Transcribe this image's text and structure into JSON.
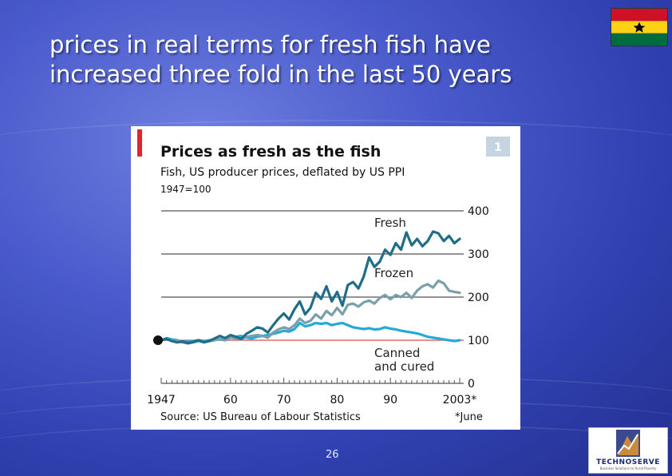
{
  "slide": {
    "title": "prices in real terms for fresh fish have\nincreased three fold in the last 50 years",
    "page_number": "26"
  },
  "logo": {
    "name": "TECHNOSERVE",
    "tagline": "Business Solutions to Rural Poverty"
  },
  "colors": {
    "fresh": "#1f6e86",
    "frozen": "#7aa0ac",
    "canned": "#27a9d6",
    "reference_line": "#e46a6a",
    "accent_bar": "#e0262a",
    "badge": "#c5d4e0",
    "grid": "#555555"
  },
  "chart_data": {
    "type": "line",
    "badge": "1",
    "title": "Prices as fresh as the fish",
    "subtitle": "Fish, US producer prices, deflated by US PPI",
    "index_note": "1947=100",
    "x_tick_labels": [
      "1947",
      "60",
      "70",
      "80",
      "90",
      "2003*"
    ],
    "x_tick_values": [
      1947,
      1960,
      1970,
      1980,
      1990,
      2003
    ],
    "xlim": [
      1947,
      2003
    ],
    "ylim": [
      0,
      400
    ],
    "y_ticks": [
      0,
      100,
      200,
      300,
      400
    ],
    "grid": true,
    "source": "Source: US Bureau of Labour Statistics",
    "footnote": "*June",
    "x": [
      1947,
      1948,
      1949,
      1950,
      1951,
      1952,
      1953,
      1954,
      1955,
      1956,
      1957,
      1958,
      1959,
      1960,
      1961,
      1962,
      1963,
      1964,
      1965,
      1966,
      1967,
      1968,
      1969,
      1970,
      1971,
      1972,
      1973,
      1974,
      1975,
      1976,
      1977,
      1978,
      1979,
      1980,
      1981,
      1982,
      1983,
      1984,
      1985,
      1986,
      1987,
      1988,
      1989,
      1990,
      1991,
      1992,
      1993,
      1994,
      1995,
      1996,
      1997,
      1998,
      1999,
      2000,
      2001,
      2002,
      2003
    ],
    "series": [
      {
        "name": "Fresh",
        "values": [
          100,
          103,
          98,
          95,
          97,
          93,
          96,
          100,
          95,
          98,
          104,
          110,
          105,
          112,
          108,
          103,
          115,
          122,
          130,
          127,
          118,
          135,
          150,
          162,
          148,
          172,
          190,
          160,
          175,
          210,
          196,
          225,
          190,
          212,
          180,
          228,
          235,
          220,
          248,
          292,
          270,
          282,
          310,
          298,
          325,
          310,
          350,
          320,
          335,
          318,
          330,
          352,
          348,
          330,
          342,
          325,
          335
        ]
      },
      {
        "name": "Frozen",
        "values": [
          100,
          102,
          100,
          98,
          95,
          93,
          95,
          98,
          96,
          98,
          100,
          103,
          101,
          106,
          104,
          102,
          108,
          110,
          112,
          110,
          106,
          118,
          125,
          130,
          126,
          135,
          150,
          140,
          145,
          160,
          150,
          168,
          158,
          175,
          160,
          182,
          185,
          178,
          188,
          192,
          185,
          198,
          205,
          195,
          205,
          200,
          210,
          198,
          215,
          225,
          230,
          222,
          238,
          232,
          215,
          212,
          210
        ]
      },
      {
        "name": "Canned and cured",
        "values": [
          100,
          105,
          102,
          100,
          96,
          97,
          98,
          100,
          98,
          100,
          101,
          102,
          100,
          106,
          108,
          110,
          106,
          104,
          108,
          110,
          112,
          115,
          118,
          122,
          120,
          126,
          140,
          132,
          135,
          140,
          138,
          140,
          135,
          138,
          140,
          135,
          130,
          128,
          126,
          128,
          125,
          126,
          130,
          127,
          125,
          122,
          120,
          118,
          116,
          112,
          108,
          106,
          104,
          102,
          100,
          98,
          100
        ]
      }
    ],
    "series_labels": [
      {
        "series": "Fresh",
        "text": "Fresh"
      },
      {
        "series": "Frozen",
        "text": "Frozen"
      },
      {
        "series": "Canned and cured",
        "text": "Canned\nand cured"
      }
    ]
  }
}
